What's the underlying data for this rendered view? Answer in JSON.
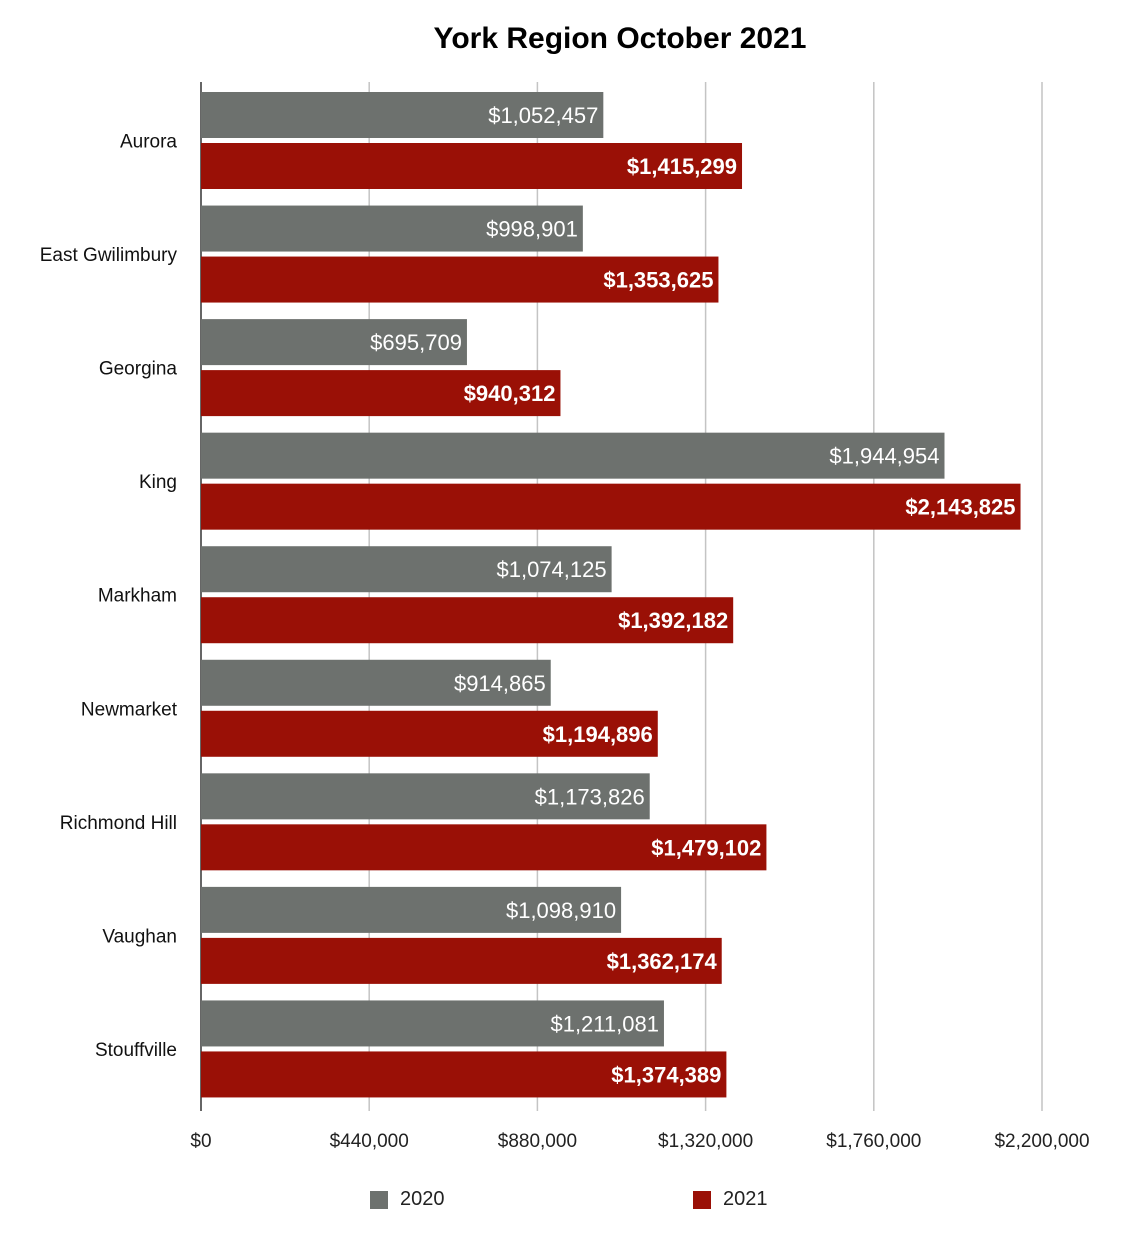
{
  "chart_data": {
    "type": "bar",
    "orientation": "horizontal",
    "title": "York Region October 2021",
    "categories": [
      "Aurora",
      "East Gwilimbury",
      "Georgina",
      "King",
      "Markham",
      "Newmarket",
      "Richmond Hill",
      "Vaughan",
      "Stouffville"
    ],
    "series": [
      {
        "name": "2020",
        "color": "#6d716e",
        "values": [
          1052457,
          998901,
          695709,
          1944954,
          1074125,
          914865,
          1173826,
          1098910,
          1211081
        ],
        "labels": [
          "$1,052,457",
          "$998,901",
          "$695,709",
          "$1,944,954",
          "$1,074,125",
          "$914,865",
          "$1,173,826",
          "$1,098,910",
          "$1,211,081"
        ]
      },
      {
        "name": "2021",
        "color": "#9a1006",
        "values": [
          1415299,
          1353625,
          940312,
          2143825,
          1392182,
          1194896,
          1479102,
          1362174,
          1374389
        ],
        "labels": [
          "$1,415,299",
          "$1,353,625",
          "$940,312",
          "$2,143,825",
          "$1,392,182",
          "$1,194,896",
          "$1,479,102",
          "$1,362,174",
          "$1,374,389"
        ]
      }
    ],
    "xlim": [
      0,
      2200000
    ],
    "xticks": [
      0,
      440000,
      880000,
      1320000,
      1760000,
      2200000
    ],
    "xtick_labels": [
      "$0",
      "$440,000",
      "$880,000",
      "$1,320,000",
      "$1,760,000",
      "$2,200,000"
    ],
    "grid": true,
    "legend_position": "bottom"
  }
}
